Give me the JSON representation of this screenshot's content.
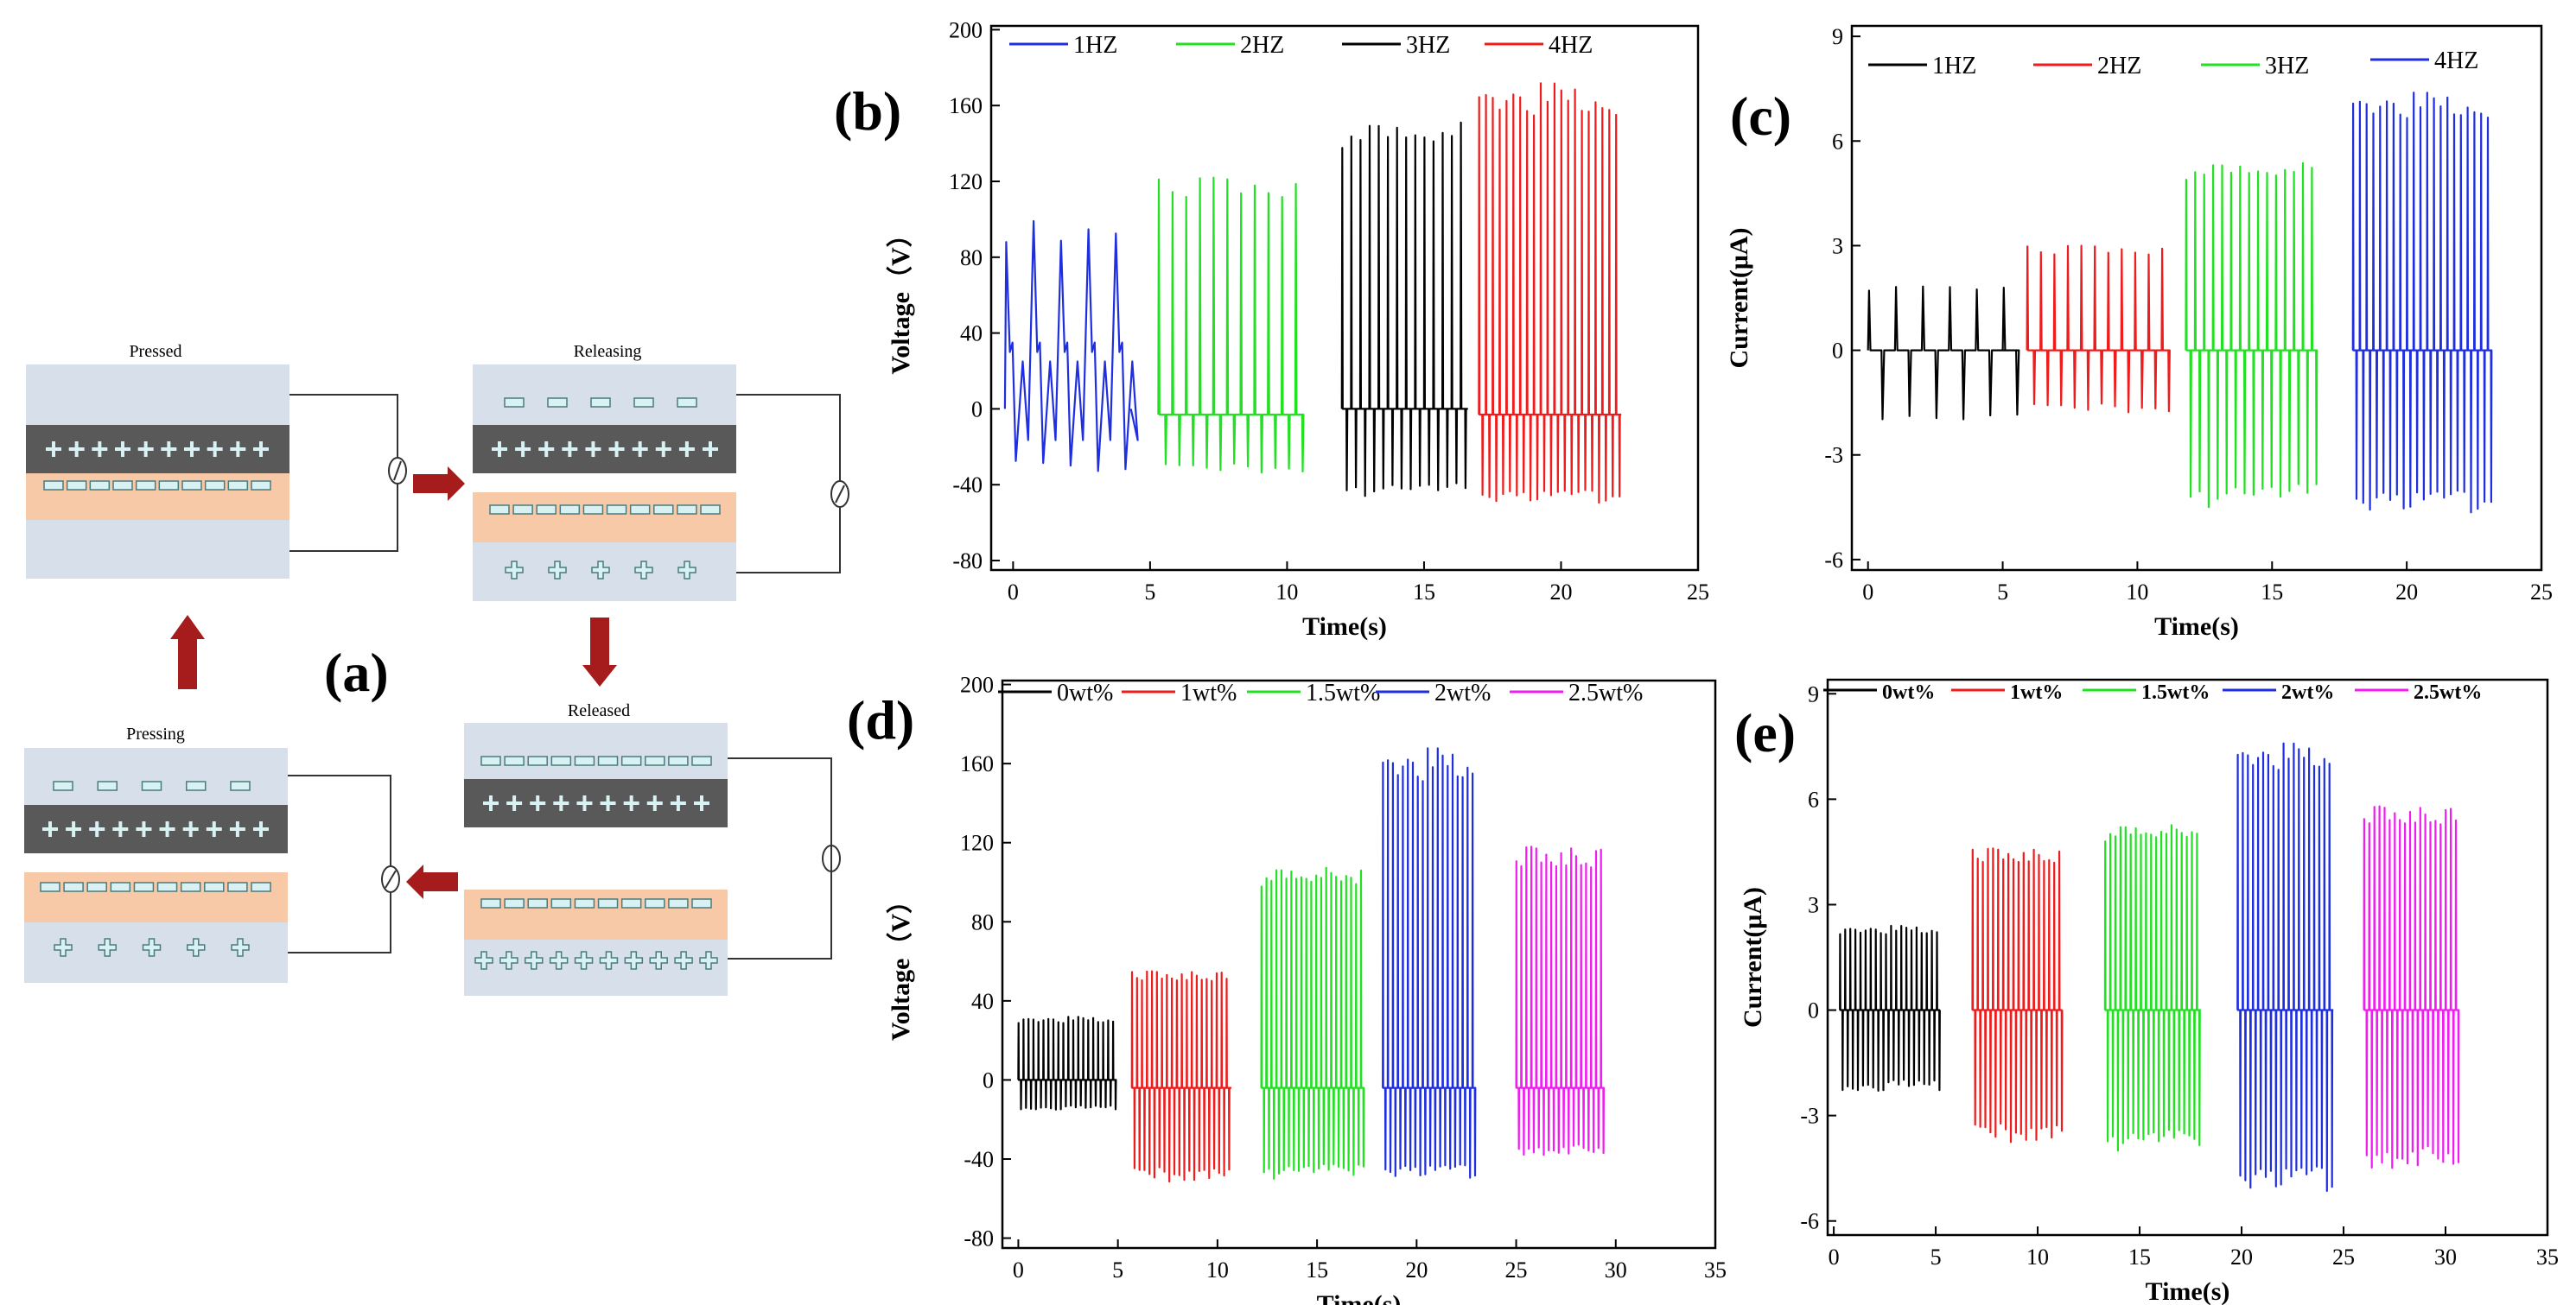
{
  "diagram": {
    "label": "(a)",
    "states": {
      "pressed": "Pressed",
      "releasing": "Releasing",
      "released": "Released",
      "pressing": "Pressing"
    },
    "colors": {
      "layer_gray": "#595959",
      "layer_peach": "#f7c9a7",
      "layer_blue": "#d7e0ea",
      "arrow": "#a61b1b",
      "wire": "#333333",
      "charge_box": "#d8f1f3"
    }
  },
  "chart_data": [
    {
      "id": "b",
      "label": "(b)",
      "type": "line",
      "xlabel": "Time(s)",
      "ylabel": "Voltage（V）",
      "xlim": [
        -0.8,
        25
      ],
      "ylim": [
        -85,
        202
      ],
      "xticks": [
        0,
        5,
        10,
        15,
        20,
        25
      ],
      "yticks": [
        -80,
        -40,
        0,
        40,
        80,
        120,
        160,
        200
      ],
      "legend_style": "normal",
      "series": [
        {
          "name": "1HZ",
          "color": "#1f2fe0",
          "start": -0.3,
          "end": 4.3,
          "freq": 1,
          "peak": 100,
          "trough": -33,
          "base": 0,
          "pattern": "oscillating"
        },
        {
          "name": "2HZ",
          "color": "#22e022",
          "start": 5.3,
          "end": 10.3,
          "freq": 2,
          "peak": 122,
          "trough": -34,
          "base": -3,
          "pattern": "spike"
        },
        {
          "name": "3HZ",
          "color": "#000000",
          "start": 12.0,
          "end": 16.6,
          "freq": 3,
          "peak": 152,
          "trough": -46,
          "base": 0,
          "pattern": "spike"
        },
        {
          "name": "4HZ",
          "color": "#ee1c1c",
          "start": 17.0,
          "end": 22.2,
          "freq": 4,
          "peak": 172,
          "trough": -50,
          "base": -3,
          "pattern": "spike"
        }
      ]
    },
    {
      "id": "c",
      "label": "(c)",
      "type": "line",
      "xlabel": "Time(s)",
      "ylabel": "Current(μA)",
      "xlim": [
        -0.6,
        25
      ],
      "ylim": [
        -6.3,
        9.3
      ],
      "xticks": [
        0,
        5,
        10,
        15,
        20,
        25
      ],
      "yticks": [
        -6,
        -3,
        0,
        3,
        6,
        9
      ],
      "legend_style": "normal",
      "series": [
        {
          "name": "1HZ",
          "color": "#000000",
          "start": 0.0,
          "end": 5.0,
          "freq": 1,
          "peak": 1.9,
          "trough": -2.0,
          "base": 0,
          "pattern": "spike"
        },
        {
          "name": "2HZ",
          "color": "#ee1c1c",
          "start": 5.9,
          "end": 10.9,
          "freq": 2,
          "peak": 3.0,
          "trough": -1.8,
          "base": 0,
          "pattern": "spike"
        },
        {
          "name": "3HZ",
          "color": "#22e022",
          "start": 11.8,
          "end": 16.6,
          "freq": 3,
          "peak": 5.4,
          "trough": -4.5,
          "base": 0,
          "pattern": "spike"
        },
        {
          "name": "4HZ",
          "color": "#1f2fe0",
          "start": 18.0,
          "end": 23.1,
          "freq": 4,
          "peak": 7.4,
          "trough": -4.7,
          "base": 0,
          "pattern": "spike"
        }
      ]
    },
    {
      "id": "d",
      "label": "(d)",
      "type": "line",
      "xlabel": "Time(s)",
      "ylabel": "Voltage（V）",
      "xlim": [
        -0.8,
        35
      ],
      "ylim": [
        -85,
        202
      ],
      "xticks": [
        0,
        5,
        10,
        15,
        20,
        25,
        30,
        35
      ],
      "yticks": [
        -80,
        -40,
        0,
        40,
        80,
        120,
        160,
        200
      ],
      "legend_style": "wide",
      "series": [
        {
          "name": "0wt%",
          "color": "#000000",
          "start": 0.0,
          "end": 4.8,
          "freq": 4,
          "peak": 32,
          "trough": -15,
          "base": 0,
          "pattern": "spike"
        },
        {
          "name": "1wt%",
          "color": "#ee1c1c",
          "start": 5.7,
          "end": 10.7,
          "freq": 4,
          "peak": 55,
          "trough": -52,
          "base": -4,
          "pattern": "spike"
        },
        {
          "name": "1.5wt%",
          "color": "#22e022",
          "start": 12.2,
          "end": 17.2,
          "freq": 4,
          "peak": 108,
          "trough": -50,
          "base": -4,
          "pattern": "spike"
        },
        {
          "name": "2wt%",
          "color": "#1f2fe0",
          "start": 18.3,
          "end": 22.8,
          "freq": 4,
          "peak": 168,
          "trough": -50,
          "base": -4,
          "pattern": "spike"
        },
        {
          "name": "2.5wt%",
          "color": "#f01cf0",
          "start": 25.0,
          "end": 29.3,
          "freq": 4,
          "peak": 118,
          "trough": -38,
          "base": -4,
          "pattern": "spike"
        }
      ]
    },
    {
      "id": "e",
      "label": "(e)",
      "type": "line",
      "xlabel": "Time(s)",
      "ylabel": "Current(μA)",
      "xlim": [
        -0.3,
        35
      ],
      "ylim": [
        -6.4,
        9.4
      ],
      "xticks": [
        0,
        5,
        10,
        15,
        20,
        25,
        30,
        35
      ],
      "yticks": [
        -6,
        -3,
        0,
        3,
        6,
        9
      ],
      "legend_style": "bold",
      "series": [
        {
          "name": "0wt%",
          "color": "#000000",
          "start": 0.3,
          "end": 5.2,
          "freq": 4,
          "peak": 2.4,
          "trough": -2.3,
          "base": 0,
          "pattern": "spike"
        },
        {
          "name": "1wt%",
          "color": "#ee1c1c",
          "start": 6.8,
          "end": 11.2,
          "freq": 4,
          "peak": 4.6,
          "trough": -3.8,
          "base": 0,
          "pattern": "spike"
        },
        {
          "name": "1.5wt%",
          "color": "#22e022",
          "start": 13.3,
          "end": 18.0,
          "freq": 4,
          "peak": 5.3,
          "trough": -4.0,
          "base": 0,
          "pattern": "spike"
        },
        {
          "name": "2wt%",
          "color": "#1f2fe0",
          "start": 19.8,
          "end": 24.5,
          "freq": 4,
          "peak": 7.6,
          "trough": -5.2,
          "base": 0,
          "pattern": "spike"
        },
        {
          "name": "2.5wt%",
          "color": "#f01cf0",
          "start": 26.0,
          "end": 30.5,
          "freq": 4,
          "peak": 5.8,
          "trough": -4.5,
          "base": 0,
          "pattern": "spike"
        }
      ]
    }
  ]
}
